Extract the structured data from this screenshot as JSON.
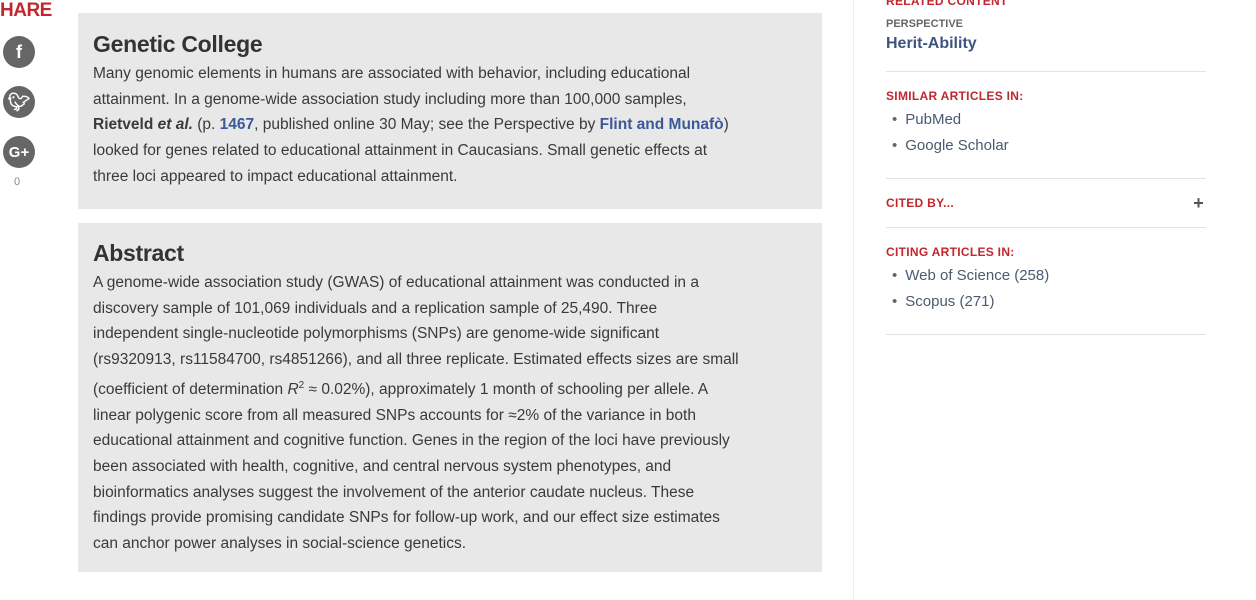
{
  "share": {
    "title": "HARE",
    "icons": [
      "facebook-icon",
      "twitter-icon",
      "google-plus-icon"
    ],
    "count": "0"
  },
  "summary": {
    "title": "Genetic College",
    "line1": "Many genomic elements in humans are associated with behavior, including educational",
    "line2": "attainment. In a genome-wide association study including more than 100,000 samples,",
    "line3_author": "Rietveld",
    "line3_etal": "et al.",
    "line3_a": " (p. ",
    "line3_page": "1467",
    "line3_b": ", published online 30 May; see the Perspective by ",
    "line3_persp": "Flint and Munafò",
    "line3_c": ")",
    "line4": "looked for genes related to educational attainment in Caucasians. Small genetic effects at",
    "line5": "three loci appeared to impact educational attainment."
  },
  "abstract": {
    "title": "Abstract",
    "lines": [
      "A genome-wide association study (GWAS) of educational attainment was conducted in a",
      "discovery sample of 101,069 individuals and a replication sample of 25,490. Three",
      "independent single-nucleotide polymorphisms (SNPs) are genome-wide significant",
      "(rs9320913, rs11584700, rs4851266), and all three replicate. Estimated effects sizes are small"
    ],
    "line5_a": "(coefficient of determination ",
    "line5_r": "R",
    "line5_sup": "2",
    "line5_b": " ≈ 0.02%), approximately 1 month of schooling per allele. A",
    "rest": [
      "linear polygenic score from all measured SNPs accounts for ≈2% of the variance in both",
      "educational attainment and cognitive function. Genes in the region of the loci have previously",
      "been associated with health, cognitive, and central nervous system phenotypes, and",
      "bioinformatics analyses suggest the involvement of the anterior caudate nucleus. These",
      "findings provide promising candidate SNPs for follow-up work, and our effect size estimates",
      "can anchor power analyses in social-science genetics."
    ]
  },
  "sidebar": {
    "related_title": "RELATED CONTENT",
    "perspective_label": "PERSPECTIVE",
    "perspective_link": "Herit-Ability",
    "similar_title": "SIMILAR ARTICLES IN:",
    "similar": [
      "PubMed",
      "Google Scholar"
    ],
    "cited_title": "CITED BY...",
    "cited_toggle": "+",
    "citing_title": "CITING ARTICLES IN:",
    "citing": [
      "Web of Science (258)",
      "Scopus (271)"
    ]
  }
}
